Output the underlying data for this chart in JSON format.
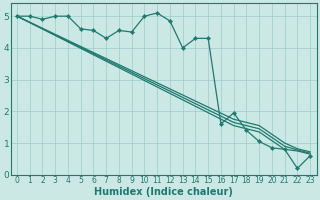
{
  "bg_color": "#cce8e4",
  "grid_color": "#99cccc",
  "line_color": "#1e7a70",
  "xlabel": "Humidex (Indice chaleur)",
  "ylim": [
    0,
    5.4
  ],
  "xlim": [
    -0.5,
    23.5
  ],
  "yticks": [
    0,
    1,
    2,
    3,
    4,
    5
  ],
  "xticks": [
    0,
    1,
    2,
    3,
    4,
    5,
    6,
    7,
    8,
    9,
    10,
    11,
    12,
    13,
    14,
    15,
    16,
    17,
    18,
    19,
    20,
    21,
    22,
    23
  ],
  "series_wavy": {
    "x": [
      0,
      1,
      2,
      3,
      4,
      5,
      6,
      7,
      8,
      9,
      10,
      11,
      12,
      13,
      14,
      15,
      16,
      17,
      18,
      19,
      20,
      21,
      22,
      23
    ],
    "y": [
      5.0,
      5.0,
      4.9,
      5.0,
      5.0,
      4.6,
      4.55,
      4.3,
      4.55,
      4.5,
      5.0,
      5.1,
      4.85,
      4.0,
      4.3,
      4.3,
      1.6,
      1.95,
      1.4,
      1.05,
      0.85,
      0.8,
      0.2,
      0.6
    ]
  },
  "series_line1": {
    "x": [
      0,
      17,
      19,
      21,
      22,
      23
    ],
    "y": [
      5.0,
      1.55,
      1.35,
      0.8,
      0.75,
      0.65
    ]
  },
  "series_line2": {
    "x": [
      0,
      17,
      19,
      21,
      22,
      23
    ],
    "y": [
      5.0,
      1.65,
      1.45,
      0.9,
      0.78,
      0.68
    ]
  },
  "series_line3": {
    "x": [
      0,
      17,
      19,
      21,
      22,
      23
    ],
    "y": [
      5.0,
      1.75,
      1.55,
      1.0,
      0.82,
      0.72
    ]
  }
}
